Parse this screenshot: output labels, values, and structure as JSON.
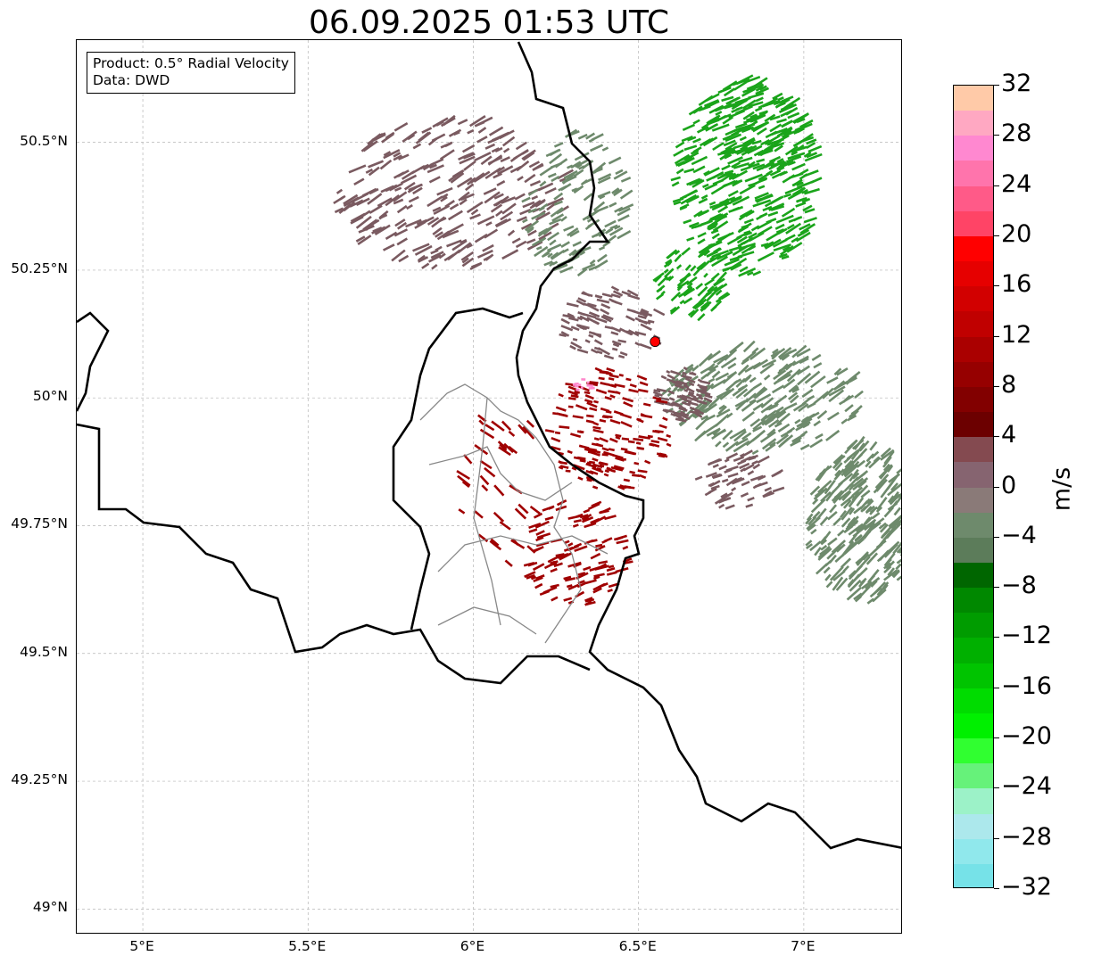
{
  "title": "06.09.2025 01:53 UTC",
  "info": {
    "product": "Product: 0.5° Radial Velocity",
    "data": "Data: DWD"
  },
  "map": {
    "lon_range": [
      4.8,
      7.3
    ],
    "lat_range": [
      48.95,
      50.7
    ],
    "lat_ticks": [
      {
        "value": 50.5,
        "label": "50.5°N"
      },
      {
        "value": 50.25,
        "label": "50.25°N"
      },
      {
        "value": 50.0,
        "label": "50°N"
      },
      {
        "value": 49.75,
        "label": "49.75°N"
      },
      {
        "value": 49.5,
        "label": "49.5°N"
      },
      {
        "value": 49.25,
        "label": "49.25°N"
      },
      {
        "value": 49.0,
        "label": "49°N"
      }
    ],
    "lon_ticks": [
      {
        "value": 5.0,
        "label": "5°E"
      },
      {
        "value": 5.5,
        "label": "5.5°E"
      },
      {
        "value": 6.0,
        "label": "6°E"
      },
      {
        "value": 6.5,
        "label": "6.5°E"
      },
      {
        "value": 7.0,
        "label": "7°E"
      }
    ],
    "radar_site": {
      "lon": 6.55,
      "lat": 50.11,
      "color": "#ff0000"
    },
    "echo_colors": {
      "outbound": "#a00000",
      "weak_outbound": "#7a5a60",
      "near_zero": "#6e8a6c",
      "inbound": "#1aa41a",
      "pink": "#ff88cc"
    },
    "grid": true
  },
  "colorbar": {
    "unit": "m/s",
    "min": -32,
    "max": 32,
    "tick_labels": [
      "32",
      "28",
      "24",
      "20",
      "16",
      "12",
      "8",
      "4",
      "0",
      "−4",
      "−8",
      "−12",
      "−16",
      "−20",
      "−24",
      "−28",
      "−32"
    ],
    "colors_top_to_bottom": [
      "#ffcaa8",
      "#ffa8c2",
      "#ff88d0",
      "#ff74ac",
      "#ff5a88",
      "#ff4466",
      "#ff0000",
      "#e60000",
      "#d20000",
      "#c00000",
      "#aa0000",
      "#960000",
      "#820000",
      "#6c0000",
      "#844a50",
      "#866470",
      "#8a7a78",
      "#6e8a6c",
      "#5c7c5a",
      "#006600",
      "#008800",
      "#009c00",
      "#00b000",
      "#00c400",
      "#00dc00",
      "#00f000",
      "#30ff30",
      "#66f27a",
      "#9cf2c8",
      "#ace8ec",
      "#90e8ec",
      "#76e2e8"
    ]
  }
}
